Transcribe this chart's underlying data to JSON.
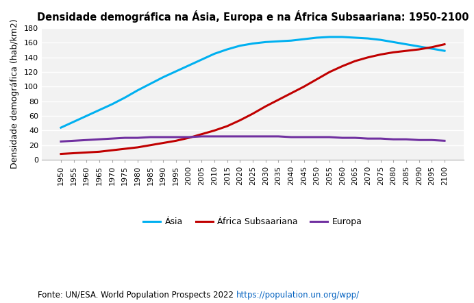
{
  "title": "Densidade demográfica na Ásia, Europa e na África Subsaariana: 1950-2100",
  "ylabel": "Densidade demográfica (hab/km2)",
  "years": [
    1950,
    1955,
    1960,
    1965,
    1970,
    1975,
    1980,
    1985,
    1990,
    1995,
    2000,
    2005,
    2010,
    2015,
    2020,
    2025,
    2030,
    2035,
    2040,
    2045,
    2050,
    2055,
    2060,
    2065,
    2070,
    2075,
    2080,
    2085,
    2090,
    2095,
    2100
  ],
  "asia": [
    44,
    52,
    60,
    68,
    76,
    85,
    95,
    104,
    113,
    121,
    129,
    137,
    145,
    151,
    156,
    159,
    161,
    162,
    163,
    165,
    167,
    168,
    168,
    167,
    166,
    164,
    161,
    158,
    155,
    152,
    149
  ],
  "africa": [
    8,
    9,
    10,
    11,
    13,
    15,
    17,
    20,
    23,
    26,
    30,
    35,
    40,
    46,
    54,
    63,
    73,
    82,
    91,
    100,
    110,
    120,
    128,
    135,
    140,
    144,
    147,
    149,
    151,
    154,
    158
  ],
  "europe": [
    25,
    26,
    27,
    28,
    29,
    30,
    30,
    31,
    31,
    31,
    31,
    32,
    32,
    32,
    32,
    32,
    32,
    32,
    31,
    31,
    31,
    31,
    30,
    30,
    29,
    29,
    28,
    28,
    27,
    27,
    26
  ],
  "asia_color": "#00B0F0",
  "africa_color": "#C00000",
  "europe_color": "#7030A0",
  "ylim": [
    0,
    180
  ],
  "yticks": [
    0,
    20,
    40,
    60,
    80,
    100,
    120,
    140,
    160,
    180
  ],
  "background_color": "#FFFFFF",
  "plot_bg_color": "#F2F2F2",
  "footnote": "Fonte: UN/ESA. World Population Prospects 2022 ",
  "footnote_url": "https://population.un.org/wpp/",
  "legend_labels": [
    "Ásia",
    "África Subsaariana",
    "Europa"
  ]
}
